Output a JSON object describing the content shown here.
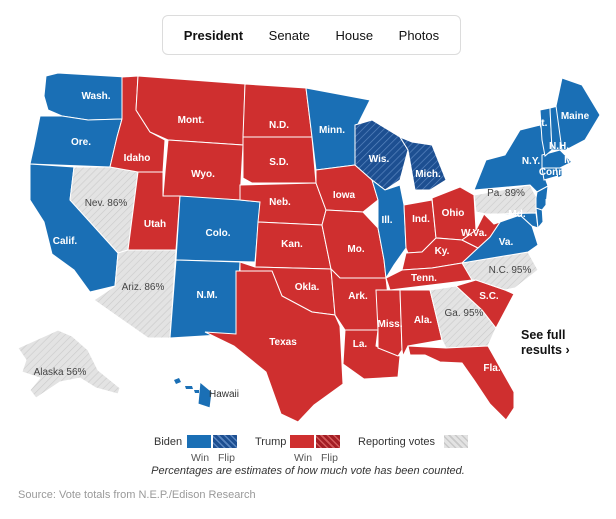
{
  "tabs": [
    {
      "label": "President",
      "active": true
    },
    {
      "label": "Senate",
      "active": false
    },
    {
      "label": "House",
      "active": false
    },
    {
      "label": "Photos",
      "active": false
    }
  ],
  "colors": {
    "biden": "#1a6fb5",
    "biden_flip": "#1d4f91",
    "trump": "#cf2f2f",
    "trump_flip": "#a31e24",
    "reporting": "#dedede",
    "border": "#ffffff"
  },
  "states": [
    {
      "code": "WA",
      "label": "Wash.",
      "result": "biden"
    },
    {
      "code": "OR",
      "label": "Ore.",
      "result": "biden"
    },
    {
      "code": "CA",
      "label": "Calif.",
      "result": "biden"
    },
    {
      "code": "NV",
      "label": "Nev. 86%",
      "result": "reporting"
    },
    {
      "code": "ID",
      "label": "Idaho",
      "result": "trump"
    },
    {
      "code": "MT",
      "label": "Mont.",
      "result": "trump"
    },
    {
      "code": "WY",
      "label": "Wyo.",
      "result": "trump"
    },
    {
      "code": "UT",
      "label": "Utah",
      "result": "trump"
    },
    {
      "code": "AZ",
      "label": "Ariz. 86%",
      "result": "reporting"
    },
    {
      "code": "CO",
      "label": "Colo.",
      "result": "biden"
    },
    {
      "code": "NM",
      "label": "N.M.",
      "result": "biden"
    },
    {
      "code": "ND",
      "label": "N.D.",
      "result": "trump"
    },
    {
      "code": "SD",
      "label": "S.D.",
      "result": "trump"
    },
    {
      "code": "NE",
      "label": "Neb.",
      "result": "trump"
    },
    {
      "code": "KS",
      "label": "Kan.",
      "result": "trump"
    },
    {
      "code": "OK",
      "label": "Okla.",
      "result": "trump"
    },
    {
      "code": "TX",
      "label": "Texas",
      "result": "trump"
    },
    {
      "code": "MN",
      "label": "Minn.",
      "result": "biden"
    },
    {
      "code": "IA",
      "label": "Iowa",
      "result": "trump"
    },
    {
      "code": "MO",
      "label": "Mo.",
      "result": "trump"
    },
    {
      "code": "AR",
      "label": "Ark.",
      "result": "trump"
    },
    {
      "code": "LA",
      "label": "La.",
      "result": "trump"
    },
    {
      "code": "WI",
      "label": "Wis.",
      "result": "biden_flip"
    },
    {
      "code": "MI",
      "label": "Mich.",
      "result": "biden_flip"
    },
    {
      "code": "IL",
      "label": "Ill.",
      "result": "biden"
    },
    {
      "code": "IN",
      "label": "Ind.",
      "result": "trump"
    },
    {
      "code": "OH",
      "label": "Ohio",
      "result": "trump"
    },
    {
      "code": "KY",
      "label": "Ky.",
      "result": "trump"
    },
    {
      "code": "TN",
      "label": "Tenn.",
      "result": "trump"
    },
    {
      "code": "MS",
      "label": "Miss.",
      "result": "trump"
    },
    {
      "code": "AL",
      "label": "Ala.",
      "result": "trump"
    },
    {
      "code": "GA",
      "label": "Ga. 95%",
      "result": "reporting"
    },
    {
      "code": "FL",
      "label": "Fla.",
      "result": "trump"
    },
    {
      "code": "SC",
      "label": "S.C.",
      "result": "trump"
    },
    {
      "code": "NC",
      "label": "N.C. 95%",
      "result": "reporting"
    },
    {
      "code": "VA",
      "label": "Va.",
      "result": "biden"
    },
    {
      "code": "WV",
      "label": "W.Va.",
      "result": "trump"
    },
    {
      "code": "PA",
      "label": "Pa. 89%",
      "result": "reporting"
    },
    {
      "code": "NY",
      "label": "N.Y.",
      "result": "biden"
    },
    {
      "code": "MD",
      "label": "Md.",
      "result": "biden"
    },
    {
      "code": "DE",
      "label": "Del.",
      "result": "biden"
    },
    {
      "code": "NJ",
      "label": "N.J.",
      "result": "biden"
    },
    {
      "code": "CT",
      "label": "Conn.",
      "result": "biden"
    },
    {
      "code": "RI",
      "label": "R.I.",
      "result": "biden"
    },
    {
      "code": "MA",
      "label": "Mass.",
      "result": "biden"
    },
    {
      "code": "VT",
      "label": "Vt.",
      "result": "biden"
    },
    {
      "code": "NH",
      "label": "N.H.",
      "result": "biden"
    },
    {
      "code": "ME",
      "label": "Maine",
      "result": "biden"
    },
    {
      "code": "AK",
      "label": "Alaska 56%",
      "result": "reporting"
    },
    {
      "code": "HI",
      "label": "Hawaii",
      "result": "biden"
    }
  ],
  "see_full_results": "See full results ›",
  "legend": {
    "biden": "Biden",
    "trump": "Trump",
    "win": "Win",
    "flip": "Flip",
    "reporting": "Reporting votes"
  },
  "note": "Percentages are estimates of how much vote has been counted.",
  "source": "Source: Vote totals from N.E.P./Edison Research"
}
